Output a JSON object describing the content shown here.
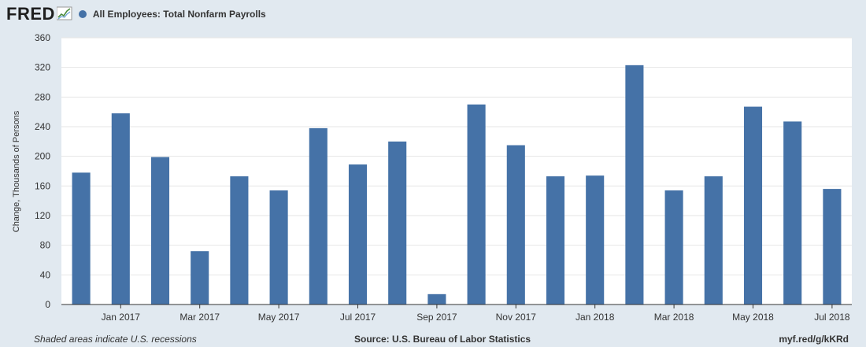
{
  "header": {
    "logo_text": "FRED",
    "series_label": "All Employees: Total Nonfarm Payrolls"
  },
  "colors": {
    "bar": "#4572a7",
    "plot_background": "#ffffff",
    "page_background": "#e1e9f0",
    "grid": "#e6e6e6"
  },
  "chart_data": {
    "type": "bar",
    "title": "",
    "xlabel": "",
    "ylabel": "Change, Thousands of Persons",
    "ylim": [
      0,
      360
    ],
    "y_ticks": [
      0,
      40,
      80,
      120,
      160,
      200,
      240,
      280,
      320,
      360
    ],
    "grid": true,
    "categories": [
      "Dec 2016",
      "Jan 2017",
      "Feb 2017",
      "Mar 2017",
      "Apr 2017",
      "May 2017",
      "Jun 2017",
      "Jul 2017",
      "Aug 2017",
      "Sep 2017",
      "Oct 2017",
      "Nov 2017",
      "Dec 2017",
      "Jan 2018",
      "Feb 2018",
      "Mar 2018",
      "Apr 2018",
      "May 2018",
      "Jun 2018",
      "Jul 2018"
    ],
    "x_tick_labels": [
      {
        "category": "Jan 2017",
        "label": "Jan 2017"
      },
      {
        "category": "Mar 2017",
        "label": "Mar 2017"
      },
      {
        "category": "May 2017",
        "label": "May 2017"
      },
      {
        "category": "Jul 2017",
        "label": "Jul 2017"
      },
      {
        "category": "Sep 2017",
        "label": "Sep 2017"
      },
      {
        "category": "Nov 2017",
        "label": "Nov 2017"
      },
      {
        "category": "Jan 2018",
        "label": "Jan 2018"
      },
      {
        "category": "Mar 2018",
        "label": "Mar 2018"
      },
      {
        "category": "May 2018",
        "label": "May 2018"
      },
      {
        "category": "Jul 2018",
        "label": "Jul 2018"
      }
    ],
    "series": [
      {
        "values": [
          178,
          258,
          199,
          72,
          173,
          154,
          238,
          189,
          220,
          14,
          270,
          215,
          173,
          174,
          323,
          154,
          173,
          267,
          247,
          156
        ]
      }
    ]
  },
  "footer": {
    "note": "Shaded areas indicate U.S. recessions",
    "source": "Source: U.S. Bureau of Labor Statistics",
    "short_url": "myf.red/g/kKRd"
  }
}
